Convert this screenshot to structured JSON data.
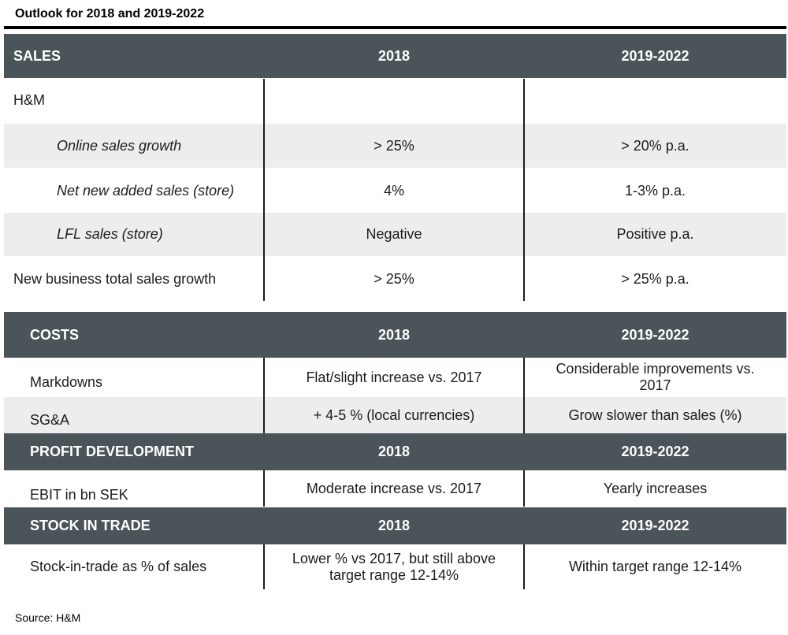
{
  "title": "Outlook for 2018 and 2019-2022",
  "source": "Source: H&M",
  "sales": {
    "header": [
      "SALES",
      "2018",
      "2019-2022"
    ],
    "rows": [
      {
        "label": "H&M",
        "y2018": "",
        "y2019_2022": ""
      },
      {
        "label": "Online sales growth",
        "y2018": "> 25%",
        "y2019_2022": "> 20% p.a."
      },
      {
        "label": "Net new added sales (store)",
        "y2018": "4%",
        "y2019_2022": "1-3% p.a."
      },
      {
        "label": "LFL sales (store)",
        "y2018": "Negative",
        "y2019_2022": "Positive p.a."
      },
      {
        "label": "New business total sales growth",
        "y2018": "> 25%",
        "y2019_2022": "> 25% p.a."
      }
    ]
  },
  "costs": {
    "header": [
      "COSTS",
      "2018",
      "2019-2022"
    ],
    "rows": [
      {
        "label": "Markdowns",
        "y2018": "Flat/slight increase vs. 2017",
        "y2019_2022": "Considerable improvements vs. 2017"
      },
      {
        "label": "SG&A",
        "y2018": "+ 4-5 % (local currencies)",
        "y2019_2022": "Grow slower than sales (%)"
      }
    ]
  },
  "profit": {
    "header": [
      "PROFIT DEVELOPMENT",
      "2018",
      "2019-2022"
    ],
    "rows": [
      {
        "label": "EBIT in bn SEK",
        "y2018": "Moderate increase vs. 2017",
        "y2019_2022": "Yearly increases"
      }
    ]
  },
  "stock": {
    "header": [
      "STOCK IN TRADE",
      "2018",
      "2019-2022"
    ],
    "rows": [
      {
        "label": "Stock-in-trade as % of sales",
        "y2018": "Lower % vs 2017, but still above target range 12-14%",
        "y2019_2022": "Within target range 12-14%"
      }
    ]
  }
}
